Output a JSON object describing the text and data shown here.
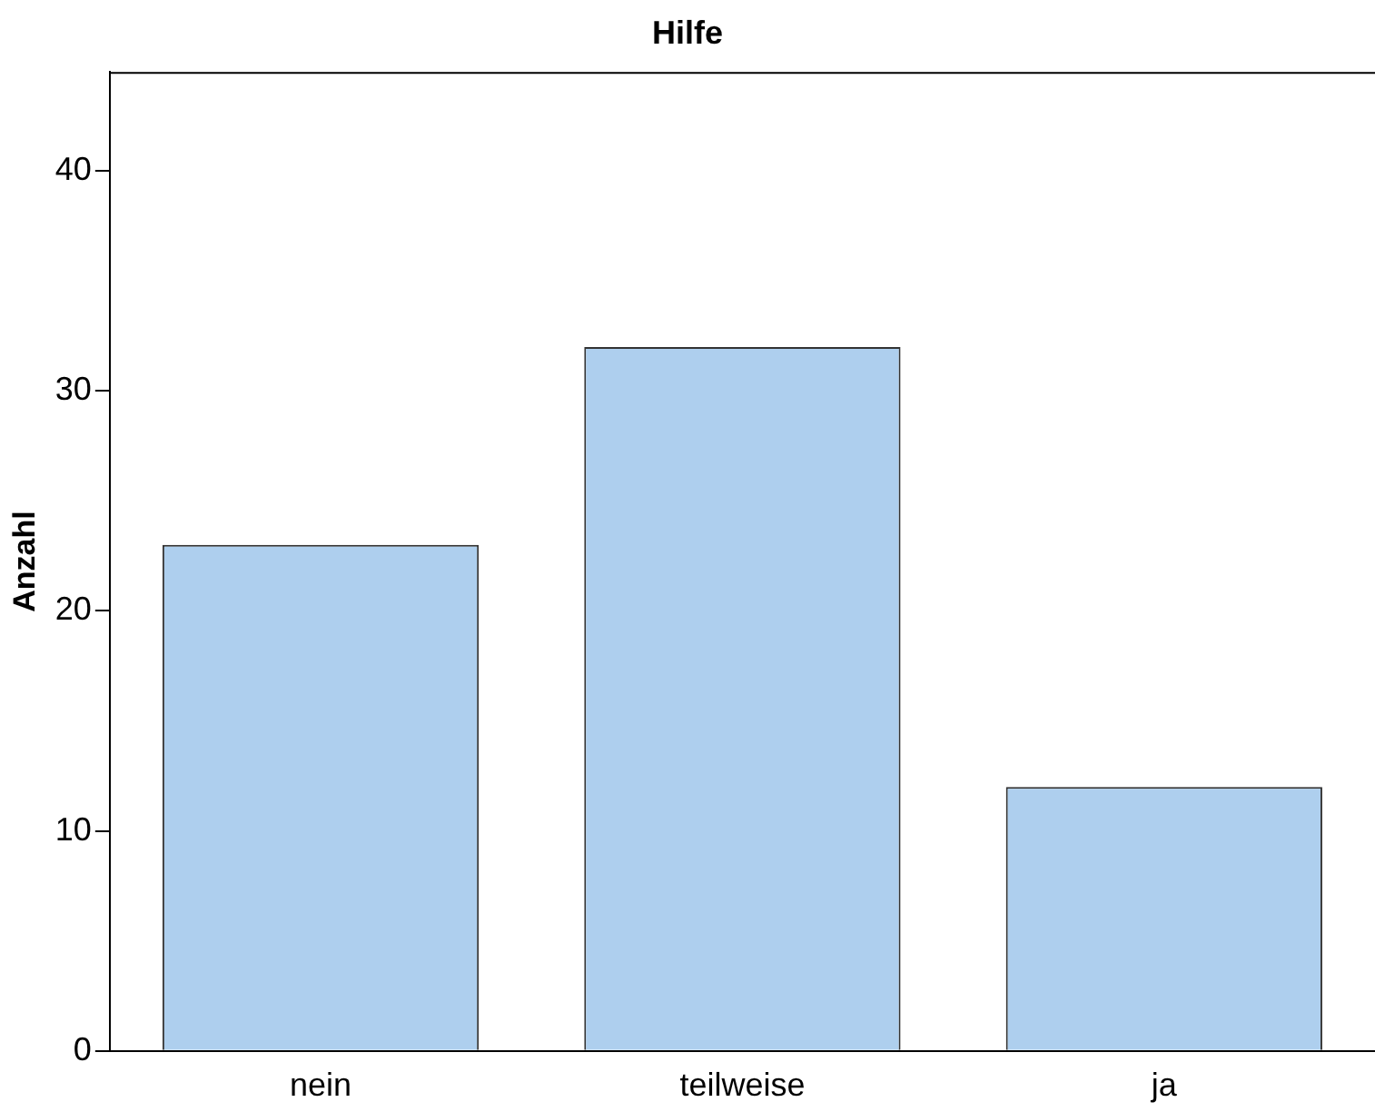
{
  "chart_data": {
    "type": "bar",
    "title": "Hilfe",
    "ylabel": "Anzahl",
    "categories": [
      "nein",
      "teilweise",
      "ja"
    ],
    "values": [
      23,
      32,
      12
    ],
    "color": "#aecfee",
    "ylim": [
      0,
      44.5
    ],
    "yticks": [
      0,
      10,
      20,
      30,
      40
    ],
    "grid": false
  }
}
